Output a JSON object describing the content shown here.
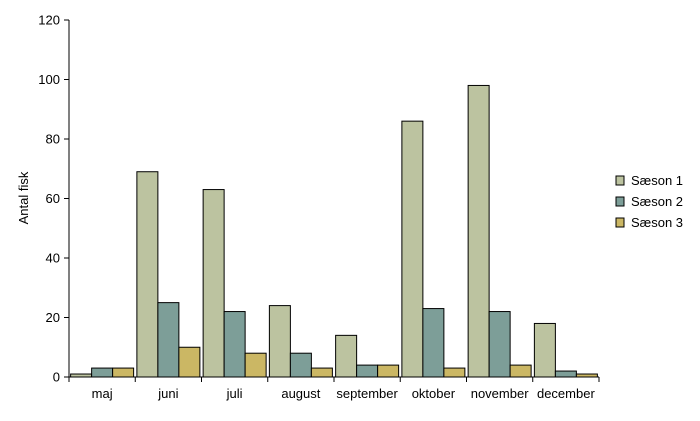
{
  "chart_data": {
    "type": "bar",
    "title": "",
    "xlabel": "",
    "ylabel": "Antal fisk",
    "ylim": [
      0,
      120
    ],
    "yticks": [
      0,
      20,
      40,
      60,
      80,
      100,
      120
    ],
    "grid": false,
    "legend_position": "right",
    "categories": [
      "maj",
      "juni",
      "juli",
      "august",
      "september",
      "oktober",
      "november",
      "december"
    ],
    "series": [
      {
        "name": "Sæson 1",
        "color": "#bcc3a0",
        "values": [
          1,
          69,
          63,
          24,
          14,
          86,
          98,
          18
        ]
      },
      {
        "name": "Sæson 2",
        "color": "#7d9e98",
        "values": [
          3,
          25,
          22,
          8,
          4,
          23,
          22,
          2
        ]
      },
      {
        "name": "Sæson 3",
        "color": "#cbb764",
        "values": [
          3,
          10,
          8,
          3,
          4,
          3,
          4,
          1
        ]
      }
    ]
  }
}
